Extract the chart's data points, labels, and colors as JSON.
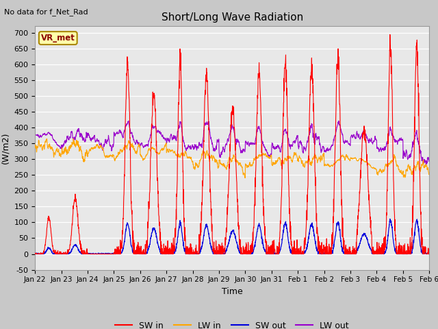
{
  "title": "Short/Long Wave Radiation",
  "xlabel": "Time",
  "ylabel": "(W/m2)",
  "top_left_text": "No data for f_Net_Rad",
  "legend_label_text": "VR_met",
  "ylim": [
    -50,
    720
  ],
  "yticks": [
    -50,
    0,
    50,
    100,
    150,
    200,
    250,
    300,
    350,
    400,
    450,
    500,
    550,
    600,
    650,
    700
  ],
  "x_tick_labels": [
    "Jan 22",
    "Jan 23",
    "Jan 24",
    "Jan 25",
    "Jan 26",
    "Jan 27",
    "Jan 28",
    "Jan 29",
    "Jan 30",
    "Jan 31",
    "Feb 1",
    "Feb 2",
    "Feb 3",
    "Feb 4",
    "Feb 5",
    "Feb 6"
  ],
  "colors": {
    "SW_in": "#FF0000",
    "LW_in": "#FFA500",
    "SW_out": "#0000DD",
    "LW_out": "#9900CC"
  },
  "legend_entries": [
    "SW in",
    "LW in",
    "SW out",
    "LW out"
  ],
  "fig_bg_color": "#C8C8C8",
  "plot_bg_color": "#E8E8E8",
  "grid_color": "#FFFFFF",
  "n_points": 2160,
  "days": 15
}
